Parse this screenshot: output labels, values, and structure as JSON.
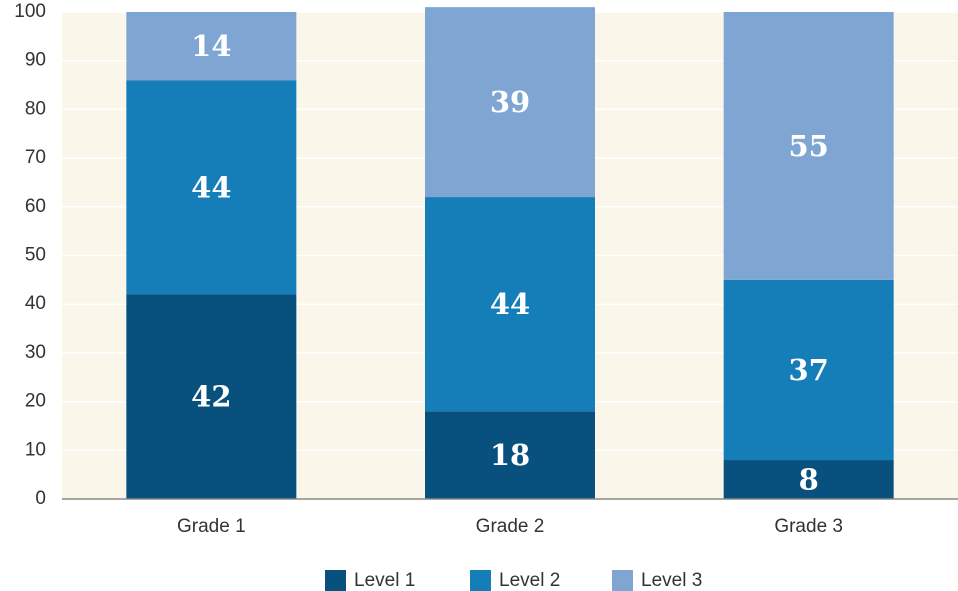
{
  "chart_data": {
    "type": "stacked-bar",
    "categories": [
      "Grade 1",
      "Grade 2",
      "Grade 3"
    ],
    "series": [
      {
        "name": "Level 1",
        "color": "#08517e",
        "values": [
          42,
          18,
          8
        ]
      },
      {
        "name": "Level 2",
        "color": "#157db7",
        "values": [
          44,
          44,
          37
        ]
      },
      {
        "name": "Level 3",
        "color": "#7fa6d2",
        "values": [
          14,
          39,
          55
        ]
      }
    ],
    "ylim": [
      0,
      100
    ],
    "yticks": [
      0,
      10,
      20,
      30,
      40,
      50,
      60,
      70,
      80,
      90,
      100
    ],
    "grid": true,
    "legend": "bottom"
  }
}
